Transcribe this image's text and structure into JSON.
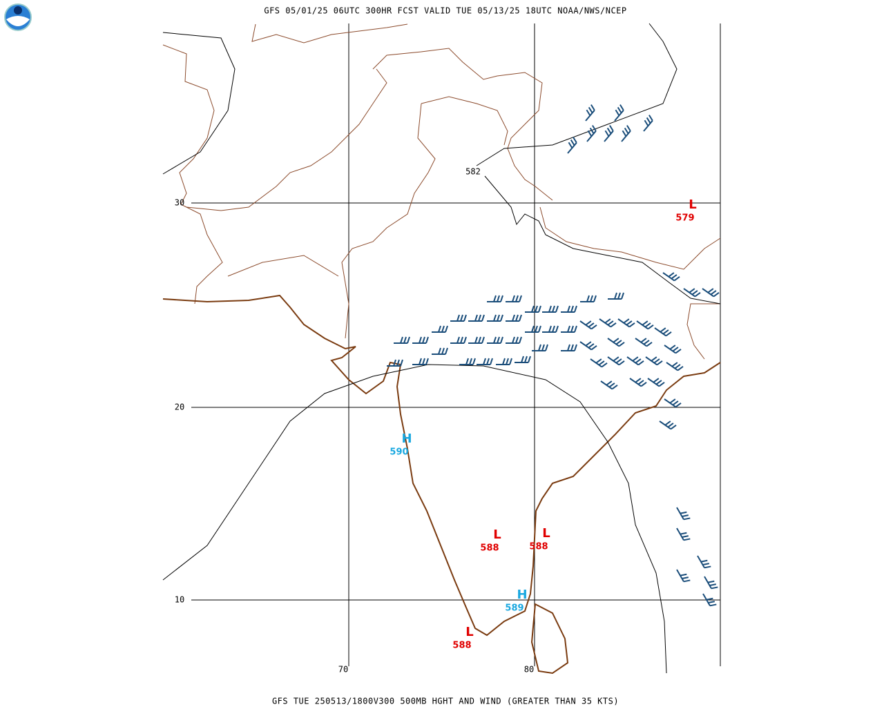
{
  "header": "GFS 05/01/25 06UTC 300HR FCST VALID TUE 05/13/25 18UTC NOAA/NWS/NCEP",
  "footer": "GFS TUE 250513/1800V300 500MB HGHT AND WIND (GREATER THAN 35 KTS)",
  "lat_labels": [
    "30",
    "20",
    "10"
  ],
  "lon_labels": [
    "70",
    "80"
  ],
  "contour_labels": [
    "582"
  ],
  "centers": [
    {
      "type": "L",
      "value": "579"
    },
    {
      "type": "H",
      "value": "590"
    },
    {
      "type": "L",
      "value": "588"
    },
    {
      "type": "L",
      "value": "588"
    },
    {
      "type": "H",
      "value": "589"
    },
    {
      "type": "L",
      "value": "588"
    }
  ]
}
